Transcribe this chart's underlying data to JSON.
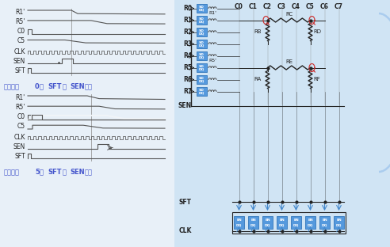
{
  "bg_color": "#e8f0f8",
  "bg_color_left": "#f0f4f8",
  "bg_color_right": "#d0e4f4",
  "text_color": "#222222",
  "caption_color": "#4455cc",
  "line_color": "#222222",
  "blue_box_color": "#5599dd",
  "blue_box_border": "#3377bb",
  "signal_line_color": "#555555",
  "resistor_color": "#222222",
  "arrow_color": "#4488cc",
  "coil_color": "#444444",
  "loop_color": "#cc3333",
  "gray_cursor": "#999999",
  "signal_labels_top": [
    "R1'",
    "R5'",
    "C0",
    "C5",
    "CLK",
    "SEN",
    "SFT"
  ],
  "signal_labels_bottom": [
    "R1'",
    "R5'",
    "C0",
    "C5",
    "CLK",
    "SEN",
    "SFT"
  ],
  "row_labels": [
    "R0",
    "R1",
    "R2",
    "R3",
    "R4",
    "R5",
    "R6",
    "R7"
  ],
  "col_labels": [
    "C0",
    "C1",
    "C2",
    "C3",
    "C4",
    "C5",
    "C6",
    "C7"
  ],
  "caption_top": [
    "缩短了第",
    "0",
    "列",
    "SFT",
    "至",
    "SEN",
    "延时"
  ],
  "caption_bottom": [
    "增大了第",
    "5",
    "列",
    "SFT",
    "至",
    "SEN",
    "延时"
  ],
  "sen_label": "SEN",
  "sft_label": "SFT",
  "clk_label": "CLK",
  "r1prime_label": "R1'",
  "r5prime_label": "R5'",
  "ra_label": "RA",
  "rb_label": "RB",
  "rc_label": "RC",
  "rd_label": "RD",
  "re_label": "RE",
  "rf_label": "RF"
}
